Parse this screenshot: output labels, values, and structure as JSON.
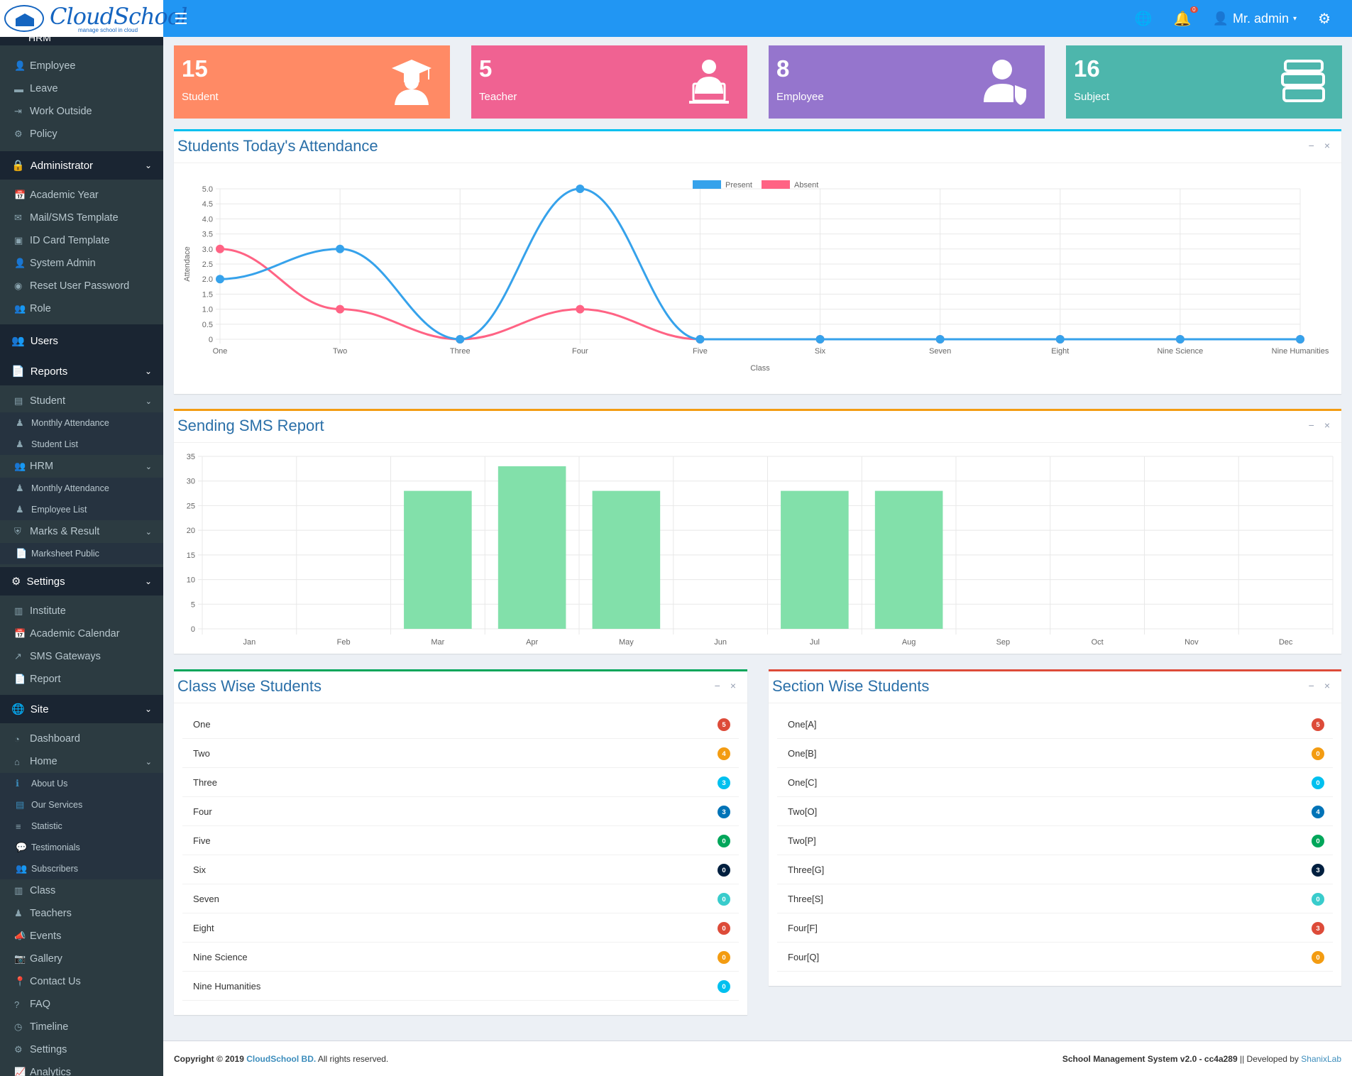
{
  "brand": {
    "name": "CloudSchool",
    "tagline": "manage school in cloud"
  },
  "header": {
    "user": "Mr. admin",
    "notification_count": "0"
  },
  "sidebar": {
    "partial_header": "HRM",
    "hrm_items": [
      {
        "label": "Employee",
        "icon": "user-icon"
      },
      {
        "label": "Leave",
        "icon": "bed-icon"
      },
      {
        "label": "Work Outside",
        "icon": "sign-out-icon"
      },
      {
        "label": "Policy",
        "icon": "cogs-icon"
      }
    ],
    "administrator": {
      "label": "Administrator",
      "items": [
        {
          "label": "Academic Year",
          "icon": "calendar-plus-icon"
        },
        {
          "label": "Mail/SMS Template",
          "icon": "envelope-open-icon"
        },
        {
          "label": "ID Card Template",
          "icon": "id-card-icon"
        },
        {
          "label": "System Admin",
          "icon": "user-secret-icon"
        },
        {
          "label": "Reset User Password",
          "icon": "eye-slash-icon"
        },
        {
          "label": "Role",
          "icon": "users-icon"
        }
      ]
    },
    "users": "Users",
    "reports": {
      "label": "Reports",
      "student": "Student",
      "student_items": [
        "Monthly Attendance",
        "Student List"
      ],
      "hrm": "HRM",
      "hrm_items": [
        "Monthly Attendance",
        "Employee List"
      ],
      "marks": "Marks & Result",
      "marks_items": [
        "Marksheet Public"
      ]
    },
    "settings": {
      "label": "Settings",
      "items": [
        "Institute",
        "Academic Calendar",
        "SMS Gateways",
        "Report"
      ]
    },
    "site": {
      "label": "Site",
      "dashboard": "Dashboard",
      "home": "Home",
      "home_items": [
        "About Us",
        "Our Services",
        "Statistic",
        "Testimonials",
        "Subscribers"
      ],
      "items": [
        "Class",
        "Teachers",
        "Events",
        "Gallery",
        "Contact Us",
        "FAQ",
        "Timeline",
        "Settings",
        "Analytics"
      ]
    }
  },
  "stats": [
    {
      "value": "15",
      "label": "Student",
      "color": "#ff8a65",
      "icon": "graduate-icon"
    },
    {
      "value": "5",
      "label": "Teacher",
      "color": "#f06292",
      "icon": "teacher-icon"
    },
    {
      "value": "8",
      "label": "Employee",
      "color": "#9575cd",
      "icon": "user-shield-icon"
    },
    {
      "value": "16",
      "label": "Subject",
      "color": "#4db6ac",
      "icon": "books-icon"
    }
  ],
  "attendance_panel": {
    "title": "Students Today's Attendance"
  },
  "sms_panel": {
    "title": "Sending SMS Report"
  },
  "class_panel": {
    "title": "Class Wise Students",
    "rows": [
      {
        "label": "One",
        "count": "5",
        "color": "#dd4b39"
      },
      {
        "label": "Two",
        "count": "4",
        "color": "#f39c12"
      },
      {
        "label": "Three",
        "count": "3",
        "color": "#00c0ef"
      },
      {
        "label": "Four",
        "count": "3",
        "color": "#0073b7"
      },
      {
        "label": "Five",
        "count": "0",
        "color": "#00a65a"
      },
      {
        "label": "Six",
        "count": "0",
        "color": "#001f3f"
      },
      {
        "label": "Seven",
        "count": "0",
        "color": "#39cccc"
      },
      {
        "label": "Eight",
        "count": "0",
        "color": "#dd4b39"
      },
      {
        "label": "Nine Science",
        "count": "0",
        "color": "#f39c12"
      },
      {
        "label": "Nine Humanities",
        "count": "0",
        "color": "#00c0ef"
      }
    ]
  },
  "section_panel": {
    "title": "Section Wise Students",
    "rows": [
      {
        "label": "One[A]",
        "count": "5",
        "color": "#dd4b39"
      },
      {
        "label": "One[B]",
        "count": "0",
        "color": "#f39c12"
      },
      {
        "label": "One[C]",
        "count": "0",
        "color": "#00c0ef"
      },
      {
        "label": "Two[O]",
        "count": "4",
        "color": "#0073b7"
      },
      {
        "label": "Two[P]",
        "count": "0",
        "color": "#00a65a"
      },
      {
        "label": "Three[G]",
        "count": "3",
        "color": "#001f3f"
      },
      {
        "label": "Three[S]",
        "count": "0",
        "color": "#39cccc"
      },
      {
        "label": "Four[F]",
        "count": "3",
        "color": "#dd4b39"
      },
      {
        "label": "Four[Q]",
        "count": "0",
        "color": "#f39c12"
      }
    ]
  },
  "chart_data": [
    {
      "type": "line",
      "title": "Students Today's Attendance",
      "xlabel": "Class",
      "ylabel": "Attendace",
      "categories": [
        "One",
        "Two",
        "Three",
        "Four",
        "Five",
        "Six",
        "Seven",
        "Eight",
        "Nine Science",
        "Nine Humanities"
      ],
      "series": [
        {
          "name": "Present",
          "color": "#36a2eb",
          "values": [
            2,
            3,
            0,
            5,
            0,
            0,
            0,
            0,
            0,
            0
          ]
        },
        {
          "name": "Absent",
          "color": "#ff6384",
          "values": [
            3,
            1,
            0,
            1,
            0,
            0,
            0,
            0,
            0,
            0
          ]
        }
      ],
      "yticks": [
        "0",
        "0.5",
        "1.0",
        "1.5",
        "2.0",
        "2.5",
        "3.0",
        "3.5",
        "4.0",
        "4.5",
        "5.0"
      ],
      "ylim": [
        0,
        5
      ]
    },
    {
      "type": "bar",
      "title": "Sending SMS Report",
      "categories": [
        "Jan",
        "Feb",
        "Mar",
        "Apr",
        "May",
        "Jun",
        "Jul",
        "Aug",
        "Sep",
        "Oct",
        "Nov",
        "Dec"
      ],
      "values": [
        0,
        0,
        28,
        33,
        28,
        0,
        28,
        28,
        0,
        0,
        0,
        0
      ],
      "color": "#82e0aa",
      "yticks": [
        "0",
        "5",
        "10",
        "15",
        "20",
        "25",
        "30",
        "35"
      ],
      "ylim": [
        0,
        35
      ]
    }
  ],
  "footer": {
    "copyright": "Copyright © 2019",
    "company": "CloudSchool BD.",
    "rights": "All rights reserved.",
    "system": "School Management System v2.0 - cc4a289",
    "dev_prefix": "|| Developed by",
    "dev": "ShanixLab"
  }
}
